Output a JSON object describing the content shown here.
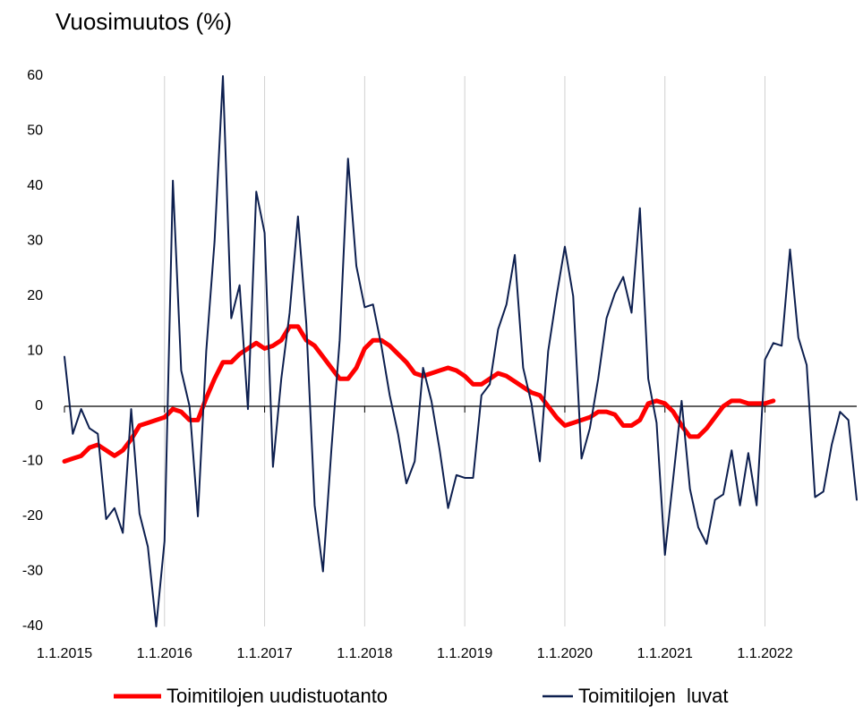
{
  "chart_data": {
    "type": "line",
    "title": "Vuosimuutos (%)",
    "categories": [
      "1.1.2015",
      null,
      null,
      null,
      null,
      null,
      null,
      null,
      null,
      null,
      null,
      null,
      "1.1.2016",
      null,
      null,
      null,
      null,
      null,
      null,
      null,
      null,
      null,
      null,
      null,
      "1.1.2017",
      null,
      null,
      null,
      null,
      null,
      null,
      null,
      null,
      null,
      null,
      null,
      "1.1.2018",
      null,
      null,
      null,
      null,
      null,
      null,
      null,
      null,
      null,
      null,
      null,
      "1.1.2019",
      null,
      null,
      null,
      null,
      null,
      null,
      null,
      null,
      null,
      null,
      null,
      "1.1.2020",
      null,
      null,
      null,
      null,
      null,
      null,
      null,
      null,
      null,
      null,
      null,
      "1.1.2021",
      null,
      null,
      null,
      null,
      null,
      null,
      null,
      null,
      null,
      null,
      null,
      "1.1.2022",
      null,
      null,
      null,
      null,
      null,
      null,
      null,
      null,
      null,
      null,
      null
    ],
    "series": [
      {
        "name": "Toimitilojen uudistuotanto",
        "color": "#ff0000",
        "values": [
          -10,
          -9.5,
          -9,
          -7.5,
          -7,
          -8,
          -9,
          -8,
          -6,
          -3.5,
          -3,
          -2.5,
          -2,
          -0.5,
          -1,
          -2.5,
          -2.5,
          1.5,
          5,
          8,
          8,
          9.5,
          10.5,
          11.5,
          10.5,
          11,
          12,
          14.5,
          14.5,
          12,
          11,
          9,
          7,
          5,
          5,
          7,
          10.5,
          12,
          12,
          11,
          9.5,
          8,
          6,
          5.5,
          6,
          6.5,
          7,
          6.5,
          5.5,
          4,
          4,
          5,
          6,
          5.5,
          4.5,
          3.5,
          2.5,
          2,
          0,
          -2,
          -3.5,
          -3,
          -2.5,
          -2,
          -1,
          -1,
          -1.5,
          -3.5,
          -3.5,
          -2.5,
          0.5,
          1,
          0.5,
          -1,
          -3.5,
          -5.5,
          -5.5,
          -4,
          -2,
          0,
          1,
          1,
          0.5,
          0.5,
          0.5,
          1,
          null,
          null,
          null,
          null,
          null,
          null,
          null,
          null,
          null,
          null
        ]
      },
      {
        "name": "Toimitilojen  luvat",
        "color": "#0d1f4f",
        "values": [
          9,
          -5,
          -0.5,
          -4,
          -5,
          -20.5,
          -18.5,
          -23,
          -0.5,
          -19.5,
          -25.5,
          -40,
          -24.5,
          41,
          6.5,
          0,
          -20,
          10,
          30,
          60,
          16,
          22,
          -0.5,
          39,
          31.5,
          -11,
          5,
          17,
          34.5,
          15,
          -18,
          -30,
          -8,
          12,
          45,
          25.5,
          18,
          18.5,
          11,
          2,
          -5,
          -14,
          -10,
          7,
          1,
          -8,
          -18.5,
          -12.5,
          -13,
          -13,
          2,
          4,
          14,
          18.5,
          27.5,
          7,
          0.5,
          -10,
          10,
          20,
          29,
          20,
          -9.5,
          -4,
          5,
          16,
          20.5,
          23.5,
          17,
          36,
          5,
          -3,
          -27,
          -13,
          1,
          -15,
          -22,
          -25,
          -17,
          -16,
          -8,
          -18,
          -8.5,
          -18,
          8.5,
          11.5,
          11,
          28.5,
          12.5,
          7.5,
          -16.5,
          -15.5,
          -7,
          -1,
          -2.5,
          -17
        ]
      }
    ],
    "ylim": [
      -40,
      60
    ],
    "yticks": [
      -40,
      -30,
      -20,
      -10,
      0,
      10,
      20,
      30,
      40,
      50,
      60
    ],
    "grid": true
  }
}
